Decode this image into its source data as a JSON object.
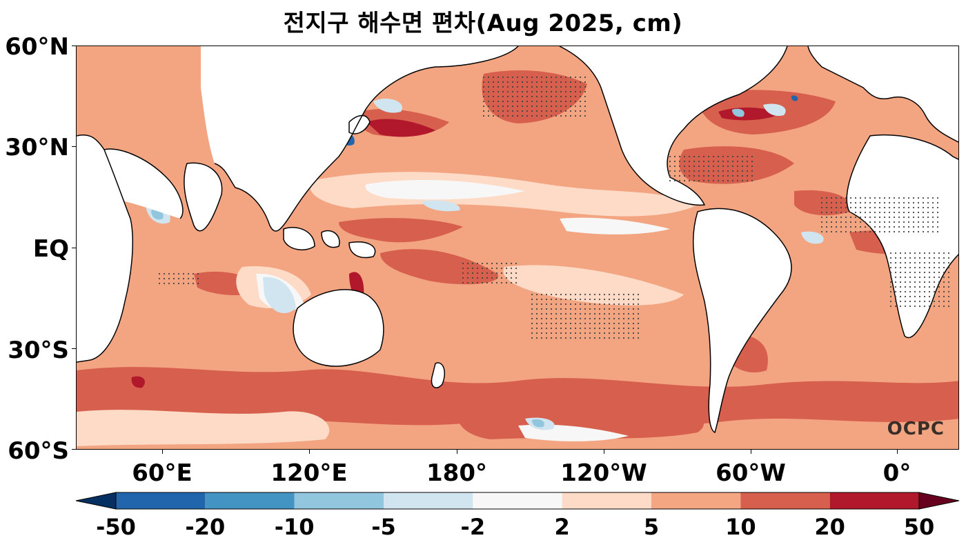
{
  "title": "전지구 해수면 편차(Aug 2025, cm)",
  "lat_labels": [
    "60°N",
    "30°N",
    "EQ",
    "30°S",
    "60°S"
  ],
  "lon_labels": [
    "60°E",
    "120°E",
    "180°",
    "120°W",
    "60°W",
    "0°"
  ],
  "colorbar": {
    "ticks": [
      "-50",
      "-20",
      "-10",
      "-5",
      "-2",
      "2",
      "5",
      "10",
      "20",
      "50"
    ],
    "colors": [
      "#2166ac",
      "#4393c3",
      "#92c5de",
      "#d1e5f0",
      "#f7f7f7",
      "#fddbc7",
      "#f4a582",
      "#d6604d",
      "#b2182b"
    ],
    "under_color": "#053061",
    "over_color": "#67001f"
  },
  "watermark": "OCPC",
  "map_colors": {
    "land": "#ffffff",
    "base": "#f3a582",
    "strong_pos": "#d6604d",
    "very_strong_pos": "#b2182b",
    "weak_pos": "#fddbc7",
    "neutral": "#f7f7f7",
    "weak_neg": "#d1e5f0",
    "mod_neg": "#92c5de",
    "strong_neg": "#2166ac",
    "coast": "#000000"
  }
}
